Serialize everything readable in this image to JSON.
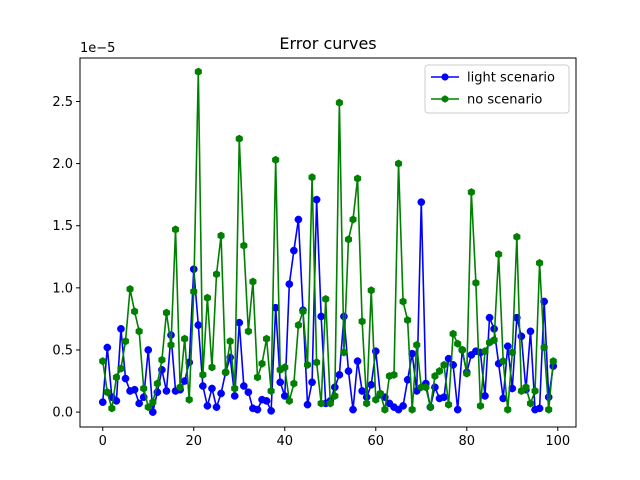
{
  "chart_data": {
    "type": "line",
    "title": "Error curves",
    "xlabel": "",
    "ylabel": "",
    "y_offset_label": "1e−5",
    "y_scale_factor": 1e-05,
    "xlim": [
      -5,
      104
    ],
    "ylim": [
      -0.12,
      2.85
    ],
    "x_ticks": [
      0,
      20,
      40,
      60,
      80,
      100
    ],
    "x_tick_labels": [
      "0",
      "20",
      "40",
      "60",
      "80",
      "100"
    ],
    "y_ticks": [
      0.0,
      0.5,
      1.0,
      1.5,
      2.0,
      2.5
    ],
    "y_tick_labels": [
      "0.0",
      "0.5",
      "1.0",
      "1.5",
      "2.0",
      "2.5"
    ],
    "grid": false,
    "legend_position": "top-right",
    "x": [
      0,
      1,
      2,
      3,
      4,
      5,
      6,
      7,
      8,
      9,
      10,
      11,
      12,
      13,
      14,
      15,
      16,
      17,
      18,
      19,
      20,
      21,
      22,
      23,
      24,
      25,
      26,
      27,
      28,
      29,
      30,
      31,
      32,
      33,
      34,
      35,
      36,
      37,
      38,
      39,
      40,
      41,
      42,
      43,
      44,
      45,
      46,
      47,
      48,
      49,
      50,
      51,
      52,
      53,
      54,
      55,
      56,
      57,
      58,
      59,
      60,
      61,
      62,
      63,
      64,
      65,
      66,
      67,
      68,
      69,
      70,
      71,
      72,
      73,
      74,
      75,
      76,
      77,
      78,
      79,
      80,
      81,
      82,
      83,
      84,
      85,
      86,
      87,
      88,
      89,
      90,
      91,
      92,
      93,
      94,
      95,
      96,
      97,
      98,
      99
    ],
    "series": [
      {
        "name": "light scenario",
        "color": "#0000ff",
        "marker": "circle",
        "values": [
          0.08,
          0.52,
          0.12,
          0.09,
          0.67,
          0.27,
          0.17,
          0.18,
          0.07,
          0.12,
          0.5,
          0.0,
          0.16,
          0.34,
          0.17,
          0.62,
          0.17,
          0.18,
          0.25,
          0.4,
          1.15,
          0.7,
          0.21,
          0.05,
          0.19,
          0.04,
          0.15,
          0.32,
          0.44,
          0.13,
          0.72,
          0.21,
          0.16,
          0.03,
          0.02,
          0.1,
          0.09,
          0.01,
          0.84,
          0.24,
          0.13,
          1.03,
          1.3,
          1.55,
          0.82,
          0.06,
          0.24,
          1.71,
          0.77,
          0.07,
          0.09,
          0.2,
          0.3,
          0.77,
          0.33,
          0.02,
          0.41,
          0.17,
          0.12,
          0.22,
          0.49,
          0.14,
          0.12,
          0.07,
          0.04,
          0.02,
          0.05,
          0.26,
          0.47,
          0.17,
          1.69,
          0.23,
          0.04,
          0.2,
          0.11,
          0.12,
          0.43,
          0.38,
          0.02,
          0.5,
          0.32,
          0.46,
          0.49,
          0.48,
          0.13,
          0.76,
          0.67,
          0.39,
          0.11,
          0.53,
          0.19,
          0.76,
          0.61,
          0.18,
          0.65,
          0.02,
          0.03,
          0.89,
          0.12,
          0.37
        ]
      },
      {
        "name": "no scenario",
        "color": "#008000",
        "marker": "hexagon",
        "values": [
          0.41,
          0.16,
          0.03,
          0.28,
          0.35,
          0.57,
          0.99,
          0.81,
          0.65,
          0.19,
          0.04,
          0.08,
          0.23,
          0.42,
          0.8,
          0.54,
          1.47,
          0.2,
          0.59,
          0.1,
          0.97,
          2.74,
          0.3,
          0.92,
          0.36,
          1.11,
          1.42,
          0.32,
          0.57,
          0.19,
          2.2,
          1.34,
          0.65,
          1.05,
          0.28,
          0.39,
          0.59,
          0.17,
          2.03,
          0.34,
          0.36,
          0.09,
          0.23,
          0.7,
          0.81,
          0.38,
          1.89,
          0.4,
          0.07,
          0.91,
          0.07,
          0.13,
          2.49,
          0.48,
          1.39,
          1.55,
          1.88,
          0.73,
          0.07,
          0.98,
          0.1,
          0.15,
          0.02,
          0.29,
          0.3,
          2.0,
          0.89,
          0.74,
          0.02,
          0.54,
          0.2,
          0.2,
          0.04,
          0.29,
          0.33,
          0.38,
          0.06,
          0.63,
          0.55,
          0.5,
          0.31,
          1.77,
          1.04,
          0.05,
          0.49,
          0.56,
          0.58,
          1.27,
          0.41,
          0.02,
          0.48,
          1.41,
          0.17,
          0.2,
          0.07,
          0.17,
          1.2,
          0.52,
          0.02,
          0.41
        ]
      }
    ]
  }
}
